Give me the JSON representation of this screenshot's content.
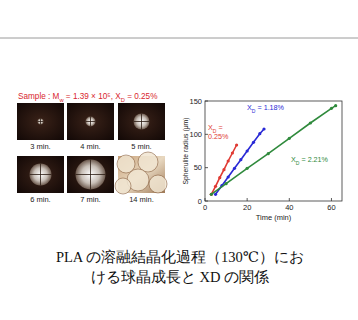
{
  "chart_data": {
    "type": "line",
    "xlabel": "Time (min)",
    "ylabel": "Spherulite radius (μm)",
    "xlim": [
      0,
      65
    ],
    "ylim": [
      0,
      150
    ],
    "xticks": [
      0,
      20,
      40,
      60
    ],
    "yticks": [
      0,
      50,
      100,
      150
    ],
    "grid": false,
    "series": [
      {
        "name": "XD = 1.18%",
        "color": "#2929d6",
        "marker": "circle",
        "line_style": "solid",
        "x": [
          5,
          8,
          11,
          14,
          17,
          20,
          23,
          26,
          28
        ],
        "values": [
          10,
          23,
          36,
          49,
          62,
          75,
          88,
          101,
          108
        ]
      },
      {
        "name": "XD = 0.25%",
        "color": "#e03a33",
        "marker": "circle",
        "line_style": "solid",
        "x": [
          3,
          5,
          7,
          9,
          11,
          13,
          15
        ],
        "values": [
          10,
          22,
          35,
          47,
          60,
          72,
          84
        ]
      },
      {
        "name": "XD = 2.21%",
        "color": "#2f8a3c",
        "marker": "circle",
        "line_style": "solid",
        "x": [
          3,
          10,
          20,
          30,
          40,
          50,
          60,
          62
        ],
        "values": [
          10,
          26,
          49,
          71,
          94,
          117,
          139,
          143
        ]
      }
    ]
  },
  "panel": {
    "title": "Sample : Mw = 1.39 × 10⁵, XD = 0.25%",
    "micrographs": [
      "3 min.",
      "4 min.",
      "5 min.",
      "6 min.",
      "7 min.",
      "14 min."
    ]
  },
  "caption": [
    "PLA の溶融結晶化過程（130℃）にお",
    "ける球晶成長と XD の関係"
  ]
}
